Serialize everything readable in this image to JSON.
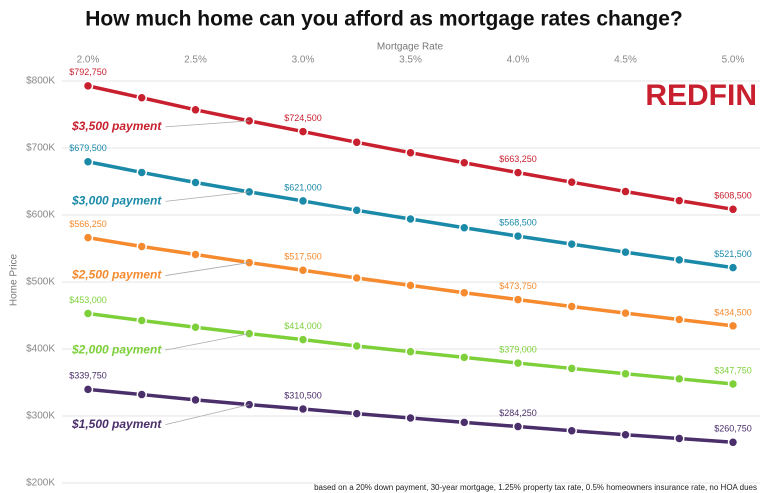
{
  "chart_data": {
    "type": "line",
    "title": "How much home can you afford as mortgage rates change?",
    "x_label": "Mortgage Rate",
    "y_label": "Home Price",
    "logo": "REDFIN",
    "note": "based on a 20% down payment, 30-year mortgage, 1.25% property tax rate, 0.5% homeowners insurance rate, no HOA dues",
    "grid": true,
    "x": [
      2.0,
      2.25,
      2.5,
      2.75,
      3.0,
      3.25,
      3.5,
      3.75,
      4.0,
      4.25,
      4.5,
      4.75,
      5.0
    ],
    "xlim": [
      2.0,
      5.0
    ],
    "xticks": [
      {
        "value": 2.0,
        "label": "2.0%"
      },
      {
        "value": 2.5,
        "label": "2.5%"
      },
      {
        "value": 3.0,
        "label": "3.0%"
      },
      {
        "value": 3.5,
        "label": "3.5%"
      },
      {
        "value": 4.0,
        "label": "4.0%"
      },
      {
        "value": 4.5,
        "label": "4.5%"
      },
      {
        "value": 5.0,
        "label": "5.0%"
      }
    ],
    "ylim": [
      200000,
      800000
    ],
    "yticks": [
      {
        "value": 200000,
        "label": "$200K"
      },
      {
        "value": 300000,
        "label": "$300K"
      },
      {
        "value": 400000,
        "label": "$400K"
      },
      {
        "value": 500000,
        "label": "$500K"
      },
      {
        "value": 600000,
        "label": "$600K"
      },
      {
        "value": 700000,
        "label": "$700K"
      },
      {
        "value": 800000,
        "label": "$800K"
      }
    ],
    "series": [
      {
        "name": "$3,500 payment",
        "color": "#c8202f",
        "values": [
          792750,
          775000,
          757000,
          740500,
          724500,
          708500,
          693000,
          678000,
          663250,
          649000,
          635000,
          621500,
          608500
        ],
        "value_labels": [
          "$792,750",
          null,
          null,
          null,
          "$724,500",
          null,
          null,
          null,
          "$663,250",
          null,
          null,
          null,
          "$608,500"
        ]
      },
      {
        "name": "$3,000 payment",
        "color": "#1a8aa8",
        "values": [
          679500,
          663500,
          648500,
          634500,
          621000,
          607000,
          594000,
          581000,
          568500,
          556500,
          544500,
          533000,
          521500
        ],
        "value_labels": [
          "$679,500",
          null,
          null,
          null,
          "$621,000",
          null,
          null,
          null,
          "$568,500",
          null,
          null,
          null,
          "$521,500"
        ]
      },
      {
        "name": "$2,500 payment",
        "color": "#f58a2e",
        "values": [
          566250,
          553000,
          541000,
          529000,
          517500,
          506000,
          495000,
          484000,
          473750,
          463500,
          453500,
          444000,
          434500
        ],
        "value_labels": [
          "$566,250",
          null,
          null,
          null,
          "$517,500",
          null,
          null,
          null,
          "$473,750",
          null,
          null,
          null,
          "$434,500"
        ]
      },
      {
        "name": "$2,000 payment",
        "color": "#7ed03a",
        "values": [
          453000,
          442500,
          432500,
          423000,
          414000,
          404500,
          396000,
          387500,
          379000,
          371000,
          363000,
          355500,
          347750
        ],
        "value_labels": [
          "$453,000",
          null,
          null,
          null,
          "$414,000",
          null,
          null,
          null,
          "$379,000",
          null,
          null,
          null,
          "$347,750"
        ]
      },
      {
        "name": "$1,500 payment",
        "color": "#4a2f6b",
        "values": [
          339750,
          332000,
          324000,
          317000,
          310500,
          303500,
          297000,
          290500,
          284250,
          278000,
          272000,
          266500,
          260750
        ],
        "value_labels": [
          "$339,750",
          null,
          null,
          null,
          "$310,500",
          null,
          null,
          null,
          "$284,250",
          null,
          null,
          null,
          "$260,750"
        ]
      }
    ]
  }
}
